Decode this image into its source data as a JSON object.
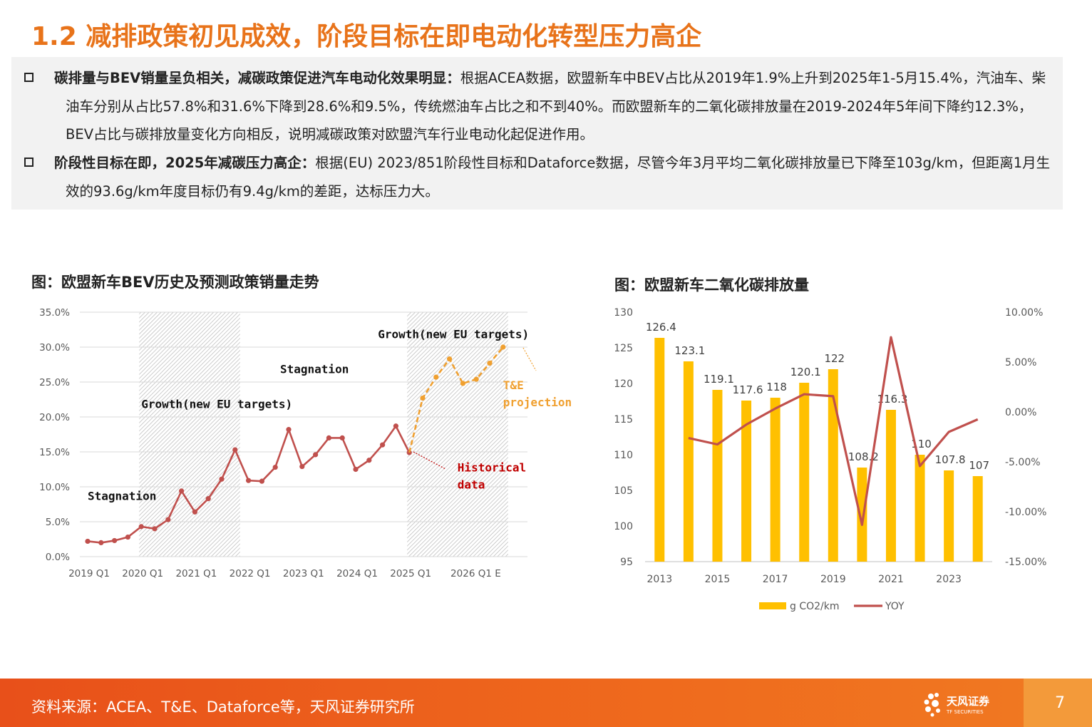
{
  "slide": {
    "title": "1.2 减排政策初见成效，阶段目标在即电动化转型压力高企",
    "bullets": [
      {
        "bold": "碳排量与BEV销量呈负相关，减碳政策促进汽车电动化效果明显：",
        "text": "根据ACEA数据，欧盟新车中BEV占比从2019年1.9%上升到2025年1-5月15.4%，汽油车、柴油车分别从占比57.8%和31.6%下降到28.6%和9.5%，传统燃油车占比之和不到40%。而欧盟新车的二氧化碳排放量在2019-2024年5年间下降约12.3%，BEV占比与碳排放量变化方向相反，说明减碳政策对欧盟汽车行业电动化起促进作用。"
      },
      {
        "bold": "阶段性目标在即，2025年减碳压力高企：",
        "text": "根据(EU) 2023/851阶段性目标和Dataforce数据，尽管今年3月平均二氧化碳排放量已下降至103g/km，但距离1月生效的93.6g/km年度目标仍有9.4g/km的差距，达标压力大。"
      }
    ],
    "footer_source": "资料来源：ACEA、T&E、Dataforce等，天风证券研究所",
    "logo_text": "天风证券",
    "logo_subtext": "TF SECURITIES",
    "page_number": "7"
  },
  "chart_data": [
    {
      "type": "line",
      "title": "图：欧盟新车BEV历史及预测政策销量走势",
      "x_tick_labels": [
        "2019 Q1",
        "2020 Q1",
        "2021 Q1",
        "2022 Q1",
        "2023 Q1",
        "2024 Q1",
        "2025 Q1",
        "2026 Q1 E"
      ],
      "y_tick_labels": [
        "0.0%",
        "5.0%",
        "10.0%",
        "15.0%",
        "20.0%",
        "25.0%",
        "30.0%",
        "35.0%"
      ],
      "ylim": [
        0,
        35
      ],
      "series": [
        {
          "name": "Historical data",
          "color": "#c0504d",
          "x": [
            "2019 Q1",
            "2019 Q2",
            "2019 Q3",
            "2019 Q4",
            "2020 Q1",
            "2020 Q2",
            "2020 Q3",
            "2020 Q4",
            "2021 Q1",
            "2021 Q2",
            "2021 Q3",
            "2021 Q4",
            "2022 Q1",
            "2022 Q2",
            "2022 Q3",
            "2022 Q4",
            "2023 Q1",
            "2023 Q2",
            "2023 Q3",
            "2023 Q4",
            "2024 Q1",
            "2024 Q2",
            "2024 Q3",
            "2024 Q4",
            "2025 Q1"
          ],
          "values": [
            2.2,
            2.0,
            2.3,
            2.8,
            4.3,
            4.0,
            5.3,
            9.4,
            6.4,
            8.3,
            11.1,
            15.3,
            10.9,
            10.8,
            12.8,
            18.2,
            12.9,
            14.6,
            17.0,
            17.0,
            12.5,
            13.8,
            16.0,
            18.7,
            14.9
          ]
        },
        {
          "name": "T&E projection",
          "color": "#f0a030",
          "x": [
            "2025 Q1",
            "2025 Q2",
            "2025 Q3",
            "2025 Q4",
            "2026 Q1",
            "2026 Q2",
            "2026 Q3",
            "2026 Q4"
          ],
          "values": [
            14.9,
            22.7,
            25.7,
            28.3,
            24.8,
            25.4,
            27.7,
            30.0
          ]
        }
      ],
      "shaded_periods": [
        {
          "from": "2020 Q1",
          "to": "2021 Q4"
        },
        {
          "from": "2025 Q1",
          "to": "2026 Q4"
        }
      ],
      "annotations": [
        {
          "text": "Stagnation",
          "x": "2019 Q1",
          "y": 8.1
        },
        {
          "text": "Growth(new EU targets)",
          "x": "2020 Q1",
          "y": 21.3
        },
        {
          "text": "Stagnation",
          "x": "2022 Q4",
          "y": 26.3
        },
        {
          "text": "Growth(new EU targets)",
          "x": "2025 Q1",
          "y": 31.3
        },
        {
          "text": "T&E projection",
          "x": "2026 Q4",
          "y": 24.0,
          "color": "#f0a030"
        },
        {
          "text": "Historical data",
          "x": "2025 Q3",
          "y": 12.2,
          "color": "#c00000"
        }
      ]
    },
    {
      "type": "bar",
      "title": "图：欧盟新车二氧化碳排放量",
      "categories": [
        "2013",
        "2014",
        "2015",
        "2016",
        "2017",
        "2018",
        "2019",
        "2020",
        "2021",
        "2022",
        "2023",
        "2024"
      ],
      "x_tick_labels": [
        "2013",
        "2015",
        "2017",
        "2019",
        "2021",
        "2023"
      ],
      "y_left_tick_labels": [
        "95",
        "100",
        "105",
        "110",
        "115",
        "120",
        "125",
        "130"
      ],
      "y_right_tick_labels": [
        "-15.00%",
        "-10.00%",
        "-5.00%",
        "0.00%",
        "5.00%",
        "10.00%"
      ],
      "ylim": [
        95,
        130
      ],
      "y2lim": [
        -15,
        10
      ],
      "series": [
        {
          "name": "g CO2/km",
          "kind": "bar",
          "color": "#ffc000",
          "values": [
            126.4,
            123.1,
            119.1,
            117.6,
            118,
            120.1,
            122,
            108.2,
            116.3,
            110,
            107.8,
            107
          ],
          "labels": [
            "126.4",
            "123.1",
            "119.1",
            "117.6",
            "118",
            "120.1",
            "122",
            "108.2",
            "116.3",
            "110",
            "107.8",
            "107"
          ]
        },
        {
          "name": "YOY",
          "kind": "line",
          "axis": "right",
          "color": "#c0504d",
          "values": [
            null,
            -2.61,
            -3.25,
            -1.26,
            0.34,
            1.78,
            1.58,
            -11.31,
            7.49,
            -5.42,
            -2.0,
            -0.74
          ]
        }
      ],
      "legend_position": "bottom"
    }
  ]
}
